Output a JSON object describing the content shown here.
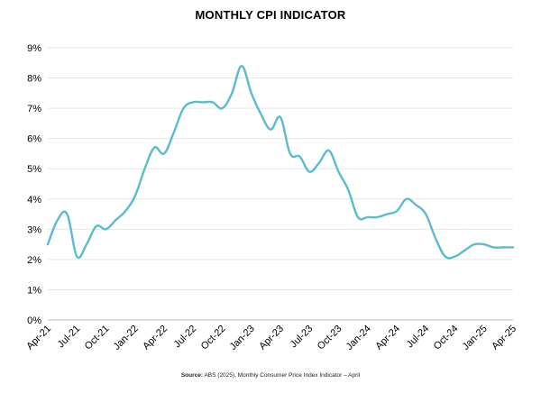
{
  "title": "MONTHLY CPI INDICATOR",
  "source_label": "Source:",
  "source_text": "ABS (2025), Monthly Consumer Price Index Indicator – April",
  "colors": {
    "line": "#5bbccd",
    "grid": "#e6e6e6",
    "axis": "#bbbbbb",
    "text": "#000000"
  },
  "chart_data": {
    "type": "line",
    "title": "MONTHLY CPI INDICATOR",
    "ylim": [
      0,
      9
    ],
    "y_ticks": [
      "0%",
      "1%",
      "2%",
      "3%",
      "4%",
      "5%",
      "6%",
      "7%",
      "8%",
      "9%"
    ],
    "x_tick_labels": [
      "Apr-21",
      "Jul-21",
      "Oct-21",
      "Jan-22",
      "Apr-22",
      "Jul-22",
      "Oct-22",
      "Jan-23",
      "Apr-23",
      "Jul-23",
      "Oct-23",
      "Jan-24",
      "Apr-24",
      "Jul-24",
      "Oct-24",
      "Jan-25",
      "Apr-25"
    ],
    "grid": true,
    "series": [
      {
        "x": [
          "Apr-21",
          "May-21",
          "Jun-21",
          "Jul-21",
          "Aug-21",
          "Sep-21",
          "Oct-21",
          "Nov-21",
          "Dec-21",
          "Jan-22",
          "Feb-22",
          "Mar-22",
          "Apr-22",
          "May-22",
          "Jun-22",
          "Jul-22",
          "Aug-22",
          "Sep-22",
          "Oct-22",
          "Nov-22",
          "Dec-22",
          "Jan-23",
          "Feb-23",
          "Mar-23",
          "Apr-23",
          "May-23",
          "Jun-23",
          "Jul-23",
          "Aug-23",
          "Sep-23",
          "Oct-23",
          "Nov-23",
          "Dec-23",
          "Jan-24",
          "Feb-24",
          "Mar-24",
          "Apr-24",
          "May-24",
          "Jun-24",
          "Jul-24",
          "Aug-24",
          "Sep-24",
          "Oct-24",
          "Nov-24",
          "Dec-24",
          "Jan-25",
          "Feb-25",
          "Mar-25",
          "Apr-25"
        ],
        "values": [
          2.5,
          3.3,
          3.5,
          2.1,
          2.5,
          3.1,
          3.0,
          3.3,
          3.6,
          4.1,
          5.0,
          5.7,
          5.5,
          6.2,
          7.0,
          7.2,
          7.2,
          7.2,
          7.0,
          7.5,
          8.4,
          7.5,
          6.8,
          6.3,
          6.7,
          5.5,
          5.4,
          4.9,
          5.2,
          5.6,
          4.9,
          4.3,
          3.4,
          3.4,
          3.4,
          3.5,
          3.6,
          4.0,
          3.8,
          3.5,
          2.7,
          2.1,
          2.1,
          2.3,
          2.5,
          2.5,
          2.4,
          2.4,
          2.4
        ]
      }
    ]
  }
}
